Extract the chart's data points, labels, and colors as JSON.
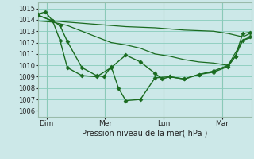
{
  "xlabel": "Pression niveau de la mer( hPa )",
  "ylim": [
    1005.5,
    1015.5
  ],
  "xlim": [
    0,
    175
  ],
  "background_color": "#cce8e8",
  "grid_color": "#88ccbb",
  "line_color": "#1a6b20",
  "series1_smooth": {
    "x": [
      0,
      12,
      24,
      36,
      48,
      60,
      72,
      84,
      96,
      108,
      120,
      132,
      144,
      156,
      168,
      174
    ],
    "y": [
      1014.4,
      1013.9,
      1013.8,
      1013.7,
      1013.6,
      1013.5,
      1013.4,
      1013.35,
      1013.3,
      1013.2,
      1013.1,
      1013.05,
      1013.0,
      1012.8,
      1012.5,
      1012.8
    ]
  },
  "series2_smooth": {
    "x": [
      0,
      12,
      24,
      36,
      48,
      60,
      72,
      84,
      96,
      108,
      120,
      132,
      144,
      156,
      168,
      174
    ],
    "y": [
      1013.9,
      1013.8,
      1013.5,
      1013.0,
      1012.5,
      1012.0,
      1011.8,
      1011.5,
      1011.0,
      1010.8,
      1010.5,
      1010.3,
      1010.2,
      1010.0,
      1012.2,
      1012.4
    ]
  },
  "series3_markers": {
    "x": [
      0,
      12,
      18,
      24,
      36,
      48,
      60,
      72,
      84,
      96,
      102,
      108,
      120,
      132,
      144,
      156,
      162,
      168,
      174
    ],
    "y": [
      1014.4,
      1013.9,
      1012.2,
      1009.8,
      1009.1,
      1009.0,
      1009.8,
      1010.9,
      1010.3,
      1009.3,
      1008.8,
      1009.0,
      1008.8,
      1009.2,
      1009.5,
      1010.0,
      1010.8,
      1012.2,
      1012.5
    ]
  },
  "series4_markers": {
    "x": [
      0,
      6,
      12,
      18,
      24,
      36,
      48,
      54,
      60,
      66,
      72,
      84,
      96,
      108,
      120,
      132,
      144,
      156,
      162,
      168,
      174
    ],
    "y": [
      1014.5,
      1014.7,
      1013.9,
      1013.5,
      1012.1,
      1009.8,
      1009.1,
      1009.0,
      1009.9,
      1008.0,
      1006.9,
      1007.0,
      1008.9,
      1009.0,
      1008.8,
      1009.2,
      1009.4,
      1009.9,
      1010.8,
      1012.8,
      1012.9
    ]
  },
  "xtick_positions": [
    7,
    55,
    103,
    151
  ],
  "xtick_labels": [
    "Dim",
    "Mer",
    "Lun",
    "Mar"
  ],
  "xvlines": [
    7,
    55,
    103,
    151
  ]
}
